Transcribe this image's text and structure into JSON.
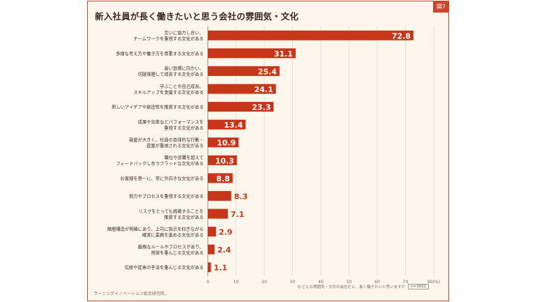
{
  "header": {
    "title": "新入社員が長く働きたいと思う会社の雰囲気・文化",
    "tag": "図7"
  },
  "footer": {
    "credit": "ラーニングイノベーション総合研究所。",
    "question": "Q.どんな雰囲気・文化の会社だと、長く働きたいと思いますか",
    "sample": "n=3931"
  },
  "colors": {
    "bar": "#c8361a",
    "background": "#fdf6ed",
    "accent": "#c8462c",
    "grid": "#e6dfd5",
    "text": "#3a2a1f"
  },
  "chart_data": {
    "type": "bar",
    "orientation": "horizontal",
    "title": "新入社員が長く働きたいと思う会社の雰囲気・文化",
    "xlabel": "",
    "ylabel": "",
    "unit_label": "80(%)",
    "xlim": [
      0,
      80
    ],
    "xticks": [
      0,
      10,
      20,
      30,
      40,
      50,
      60,
      70
    ],
    "grid": true,
    "categories": [
      [
        "互いに協力し合い、",
        "チームワークを重視する文化がある"
      ],
      [
        "多様な考え方や働き方を尊重する文化がある"
      ],
      [
        "高い目標に向かい、",
        "切磋琢磨して成長する文化がある"
      ],
      [
        "学ぶことや自己成長、",
        "スキルアップを支援する文化がある"
      ],
      [
        "新しいアイデアや創造性を推奨する文化がある"
      ],
      [
        "成果や効率などパフォーマンスを",
        "重視する文化がある"
      ],
      [
        "裁量が大きく、社員の自律的な行動・",
        "提案が重視される文化がある"
      ],
      [
        "職位や部署を超えて",
        "フィードバックし合うフラットな文化がある"
      ],
      [
        "お客様を第一に、常に外向きな文化がある"
      ],
      [
        "努力やプロセスを重視する文化がある"
      ],
      [
        "リスクをとっても挑戦することを",
        "推奨する文化がある"
      ],
      [
        "階層構造が明確にあり、上司に指示を仰ぎながら",
        "確実に業務を進める文化がある"
      ],
      [
        "厳格なルールやプロセスがあり、",
        "規律を重んじる文化がある"
      ],
      [
        "伝統や従来の手法を重んじる文化がある"
      ]
    ],
    "values": [
      72.8,
      31.1,
      25.4,
      24.1,
      23.3,
      13.4,
      10.9,
      10.3,
      8.8,
      8.3,
      7.1,
      2.9,
      2.4,
      1.1
    ],
    "labels": [
      "72.8",
      "31.1",
      "25.4",
      "24.1",
      "23.3",
      "13.4",
      "10.9",
      "10.3",
      "8.8",
      "8.3",
      "7.1",
      "2.9",
      "2.4",
      "1.1"
    ]
  }
}
